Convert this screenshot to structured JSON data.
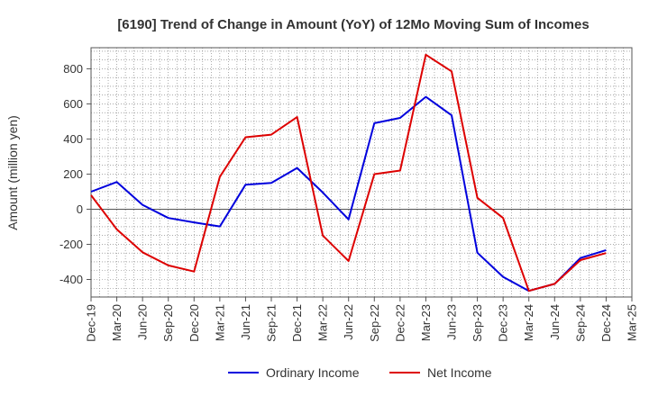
{
  "chart_data": {
    "type": "line",
    "title": "[6190]  Trend of Change in Amount (YoY) of 12Mo Moving Sum of Incomes",
    "xlabel": "",
    "ylabel": "Amount (million yen)",
    "ylim": [
      -500,
      920
    ],
    "yticks": [
      -400,
      -200,
      0,
      200,
      400,
      600,
      800
    ],
    "ytick_labels": [
      "-400",
      "-200",
      "0",
      "200",
      "400",
      "600",
      "800"
    ],
    "categories": [
      "Dec-19",
      "Mar-20",
      "Jun-20",
      "Sep-20",
      "Dec-20",
      "Mar-21",
      "Jun-21",
      "Sep-21",
      "Dec-21",
      "Mar-22",
      "Jun-22",
      "Sep-22",
      "Dec-22",
      "Mar-23",
      "Jun-23",
      "Sep-23",
      "Dec-23",
      "Mar-24",
      "Jun-24",
      "Sep-24",
      "Dec-24",
      "Mar-25"
    ],
    "grid": true,
    "legend_position": "bottom-center",
    "series": [
      {
        "name": "Ordinary Income",
        "color": "#0000dd",
        "values": [
          100,
          155,
          25,
          -50,
          -75,
          -98,
          140,
          150,
          235,
          95,
          -58,
          490,
          520,
          640,
          535,
          -248,
          -385,
          -465,
          -425,
          -278,
          -233,
          null
        ]
      },
      {
        "name": "Net Income",
        "color": "#dd0000",
        "values": [
          80,
          -115,
          -245,
          -320,
          -355,
          185,
          410,
          425,
          525,
          -150,
          -295,
          200,
          220,
          880,
          785,
          65,
          -50,
          -465,
          -425,
          -290,
          -250,
          null
        ]
      }
    ]
  }
}
